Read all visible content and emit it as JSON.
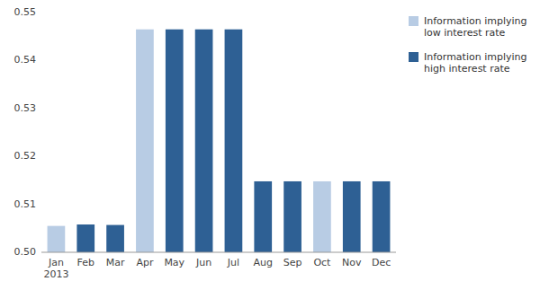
{
  "chart_data": {
    "type": "bar",
    "categories": [
      "Jan\n2013",
      "Feb",
      "Mar",
      "Apr",
      "May",
      "Jun",
      "Jul",
      "Aug",
      "Sep",
      "Oct",
      "Nov",
      "Dec"
    ],
    "values": [
      0.5055,
      0.5058,
      0.5057,
      0.5465,
      0.5465,
      0.5465,
      0.5465,
      0.5148,
      0.5148,
      0.5148,
      0.5148,
      0.5148
    ],
    "colors": [
      "#b8cce4",
      "#2e6094",
      "#2e6094",
      "#b8cce4",
      "#2e6094",
      "#2e6094",
      "#2e6094",
      "#2e6094",
      "#2e6094",
      "#b8cce4",
      "#2e6094",
      "#2e6094"
    ],
    "ylim": [
      0.5,
      0.55
    ],
    "yticks": [
      {
        "value": 0.5,
        "label": "0.50"
      },
      0.51,
      0.52,
      0.53,
      0.54,
      0.55
    ],
    "grid": false,
    "legend": "upper right",
    "legend_entries": [
      {
        "name": "Information implying\nlow interest rate",
        "color": "#b8cce4"
      },
      {
        "name": "Information implying\nhigh interest rate",
        "color": "#2e6094"
      }
    ]
  }
}
